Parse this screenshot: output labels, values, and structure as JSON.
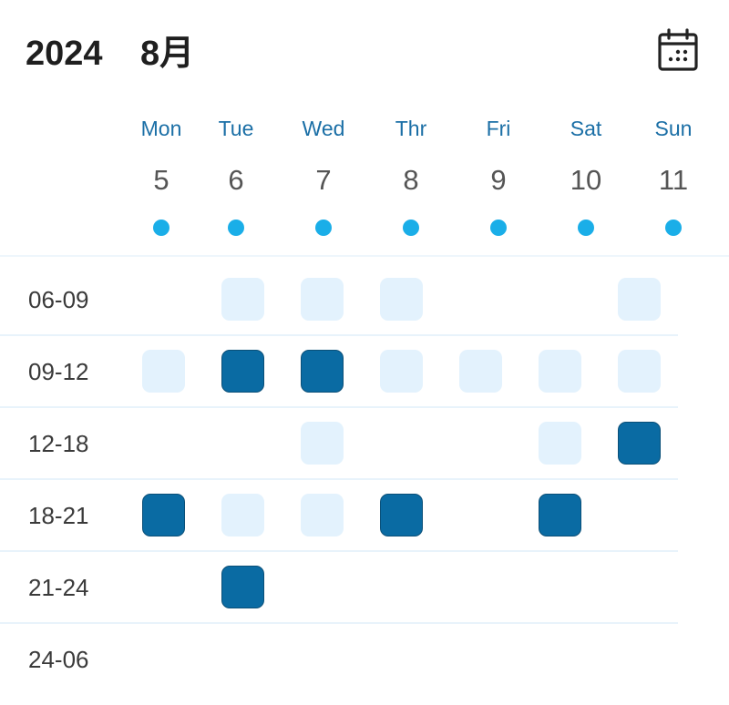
{
  "header": {
    "year": "2024",
    "month": "8月",
    "calendar_icon": "calendar-icon"
  },
  "days": [
    {
      "name": "Mon",
      "num": "5"
    },
    {
      "name": "Tue",
      "num": "6"
    },
    {
      "name": "Wed",
      "num": "7"
    },
    {
      "name": "Thr",
      "num": "8"
    },
    {
      "name": "Fri",
      "num": "9"
    },
    {
      "name": "Sat",
      "num": "10"
    },
    {
      "name": "Sun",
      "num": "11"
    }
  ],
  "colors": {
    "accent": "#1aaee8",
    "day_label": "#1b6fa6",
    "slot_available": "#e3f2fd",
    "slot_selected": "#0a6ba3"
  },
  "slots": [
    {
      "label": "06-09",
      "cells": [
        "none",
        "available",
        "available",
        "available",
        "none",
        "none",
        "available"
      ]
    },
    {
      "label": "09-12",
      "cells": [
        "available",
        "selected",
        "selected",
        "available",
        "available",
        "available",
        "available"
      ]
    },
    {
      "label": "12-18",
      "cells": [
        "none",
        "none",
        "available",
        "none",
        "none",
        "available",
        "selected"
      ]
    },
    {
      "label": "18-21",
      "cells": [
        "selected",
        "available",
        "available",
        "selected",
        "none",
        "selected",
        "none"
      ]
    },
    {
      "label": "21-24",
      "cells": [
        "none",
        "selected",
        "none",
        "none",
        "none",
        "none",
        "none"
      ]
    },
    {
      "label": "24-06",
      "cells": [
        "none",
        "none",
        "none",
        "none",
        "none",
        "none",
        "none"
      ]
    }
  ]
}
